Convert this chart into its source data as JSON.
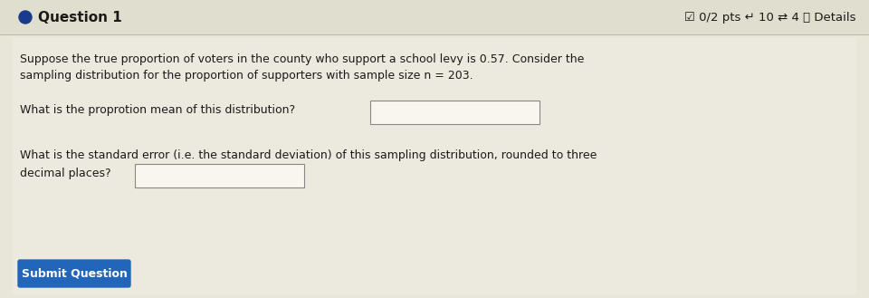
{
  "bg_color": "#e8e6d8",
  "header_bg_color": "#e0dece",
  "body_bg_color": "#eceade",
  "header_text": "Question 1",
  "header_right": "☑ 0/2 pts ↵ 10 ⇄ 4 ⓘ Details",
  "divider_color": "#bbbbaa",
  "body_text_1": "Suppose the true proportion of voters in the county who support a school levy is 0.57. Consider the",
  "body_text_2": "sampling distribution for the proportion of supporters with sample size n = 203.",
  "question1_label": "What is the proprotion mean of this distribution?",
  "question2_label_line1": "What is the standard error (i.e. the standard deviation) of this sampling distribution, rounded to three",
  "question2_label_line2": "decimal places?",
  "button_text": "Submit Question",
  "button_color": "#2266bb",
  "button_text_color": "#ffffff",
  "header_text_color": "#1a1a1a",
  "text_color": "#1a1a1a",
  "input_box_color": "#f8f6ee",
  "bullet_color": "#1a3a8a",
  "input_border_color": "#888888",
  "font_size_header": 11,
  "font_size_body": 9,
  "font_size_button": 9
}
